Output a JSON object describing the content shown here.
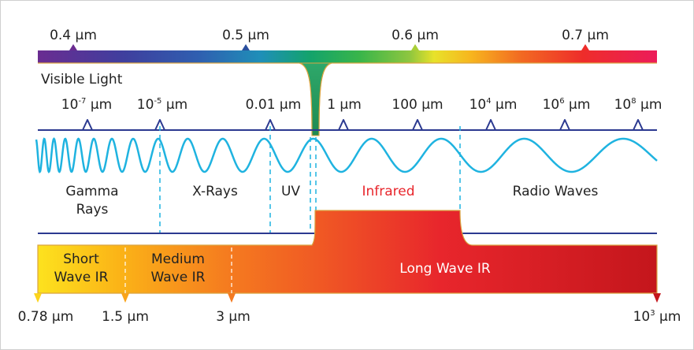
{
  "visible_scale": {
    "title": "Visible Light",
    "ticks": [
      "0.4 µm",
      "0.5 µm",
      "0.6 µm",
      "0.7 µm"
    ]
  },
  "wavelength_scale": {
    "ticks": [
      {
        "base": "10",
        "exp": "-7",
        "unit": " µm"
      },
      {
        "base": "10",
        "exp": "-5",
        "unit": " µm"
      },
      {
        "text": "0.01 µm"
      },
      {
        "text": "1 µm"
      },
      {
        "text": "100 µm"
      },
      {
        "base": "10",
        "exp": "4",
        "unit": " µm"
      },
      {
        "base": "10",
        "exp": "6",
        "unit": " µm"
      },
      {
        "base": "10",
        "exp": "8",
        "unit": " µm"
      }
    ]
  },
  "regions": {
    "gamma_line1": "Gamma",
    "gamma_line2": "Rays",
    "xrays": "X-Rays",
    "uv": "UV",
    "infrared": "Infrared",
    "radio": "Radio Waves"
  },
  "ir_bands": {
    "short_line1": "Short",
    "short_line2": "Wave IR",
    "medium_line1": "Medium",
    "medium_line2": "Wave IR",
    "long": "Long Wave IR"
  },
  "ir_scale": {
    "left": "0.78 µm",
    "t2": "1.5 µm",
    "t3": "3 µm",
    "right_base": "10",
    "right_exp": "3",
    "right_unit": " µm"
  },
  "colors": {
    "scale_line": "#2b3990",
    "wave": "#1fb3e0",
    "infrared_label": "#e8262c",
    "outline": "#d9a441"
  }
}
